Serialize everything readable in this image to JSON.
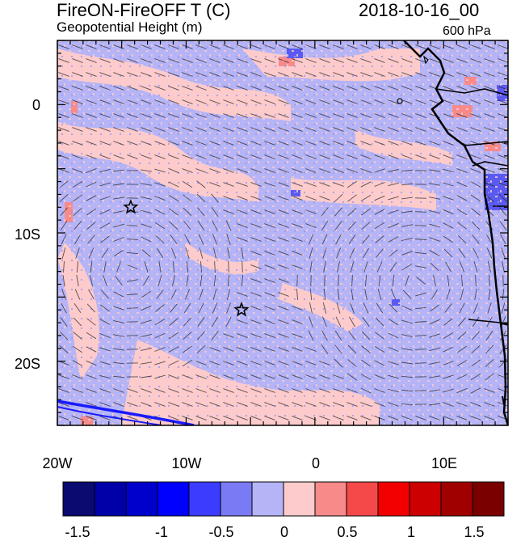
{
  "title": "FireON-FireOFF T (C)",
  "datetime": "2018-10-16_00",
  "subtitle": "Geopotential Height (m)",
  "level": "600 hPa",
  "map": {
    "lon_range": [
      -20,
      15
    ],
    "lat_range": [
      -25,
      5
    ],
    "y_ticks": [
      "0",
      "10S",
      "20S"
    ],
    "x_ticks": [
      "20W",
      "10W",
      "0",
      "10E"
    ],
    "markers": [
      {
        "lon": -14.3,
        "lat": -8
      },
      {
        "lon": -5.7,
        "lat": -16
      }
    ]
  },
  "colorbar": {
    "colors": [
      "#0a0a70",
      "#0000a8",
      "#0000cd",
      "#0000ff",
      "#3c3cff",
      "#7a7af5",
      "#b4b4f7",
      "#fdcbcb",
      "#f88a8a",
      "#f54848",
      "#f20000",
      "#cc0000",
      "#a00000",
      "#7a0000"
    ],
    "labels": [
      "-1.5",
      "-1",
      "-0.5",
      "0",
      "0.5",
      "1",
      "1.5"
    ]
  }
}
